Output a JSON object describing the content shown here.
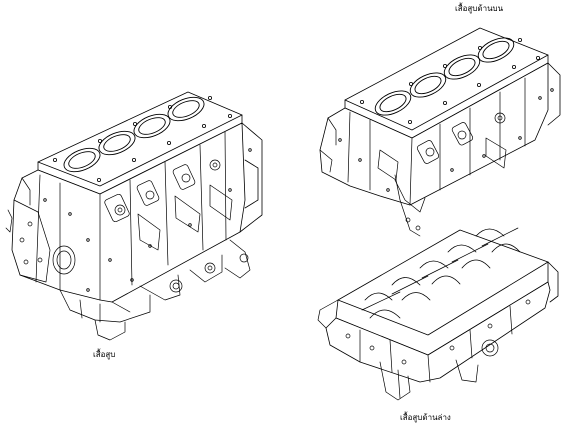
{
  "captions": {
    "cylinder_block": "เสื้อสูบ",
    "upper_block": "เสื้อสูบด้านบน",
    "lower_block": "เสื้อสูบด้านล่าง"
  },
  "line_color": "#000000",
  "fill_color": "#ffffff"
}
